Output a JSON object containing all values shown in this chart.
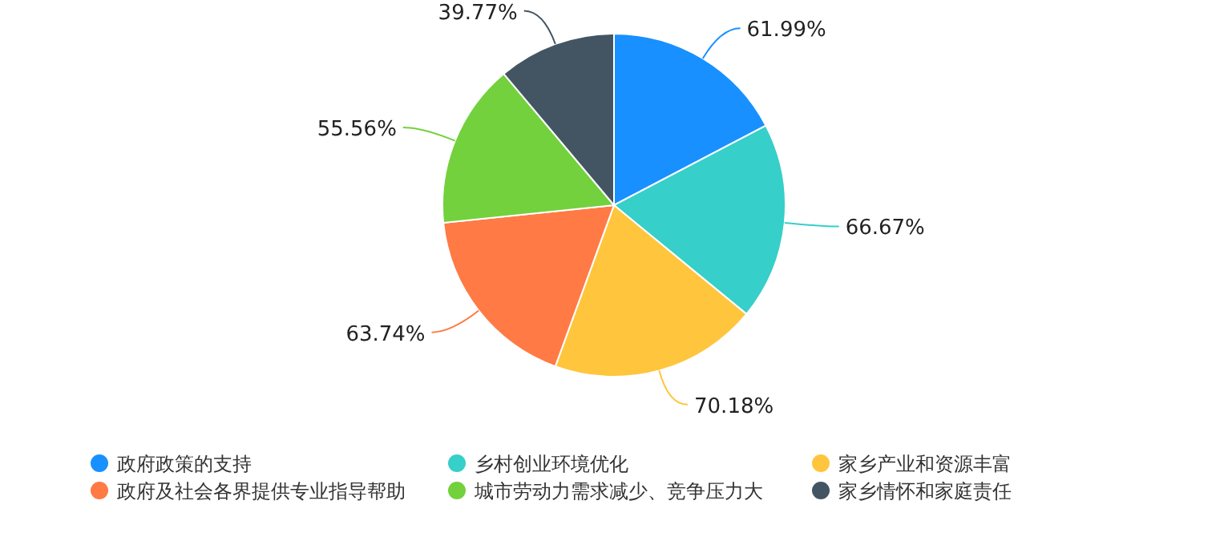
{
  "chart_data": {
    "type": "pie",
    "categories": [
      "政府政策的支持",
      "乡村创业环境优化",
      "家乡产业和资源丰富",
      "政府及社会各界提供专业指导帮助",
      "城市劳动力需求减少、竞争压力大",
      "家乡情怀和家庭责任"
    ],
    "values": [
      61.99,
      66.67,
      70.18,
      63.74,
      55.56,
      39.77
    ],
    "colors": [
      "#1890ff",
      "#36cfc9",
      "#ffc53d",
      "#ff7a45",
      "#73d13d",
      "#435563"
    ],
    "value_labels": [
      "61.99%",
      "66.67%",
      "70.18%",
      "63.74%",
      "55.56%",
      "39.77%"
    ],
    "legend": "bottom"
  }
}
